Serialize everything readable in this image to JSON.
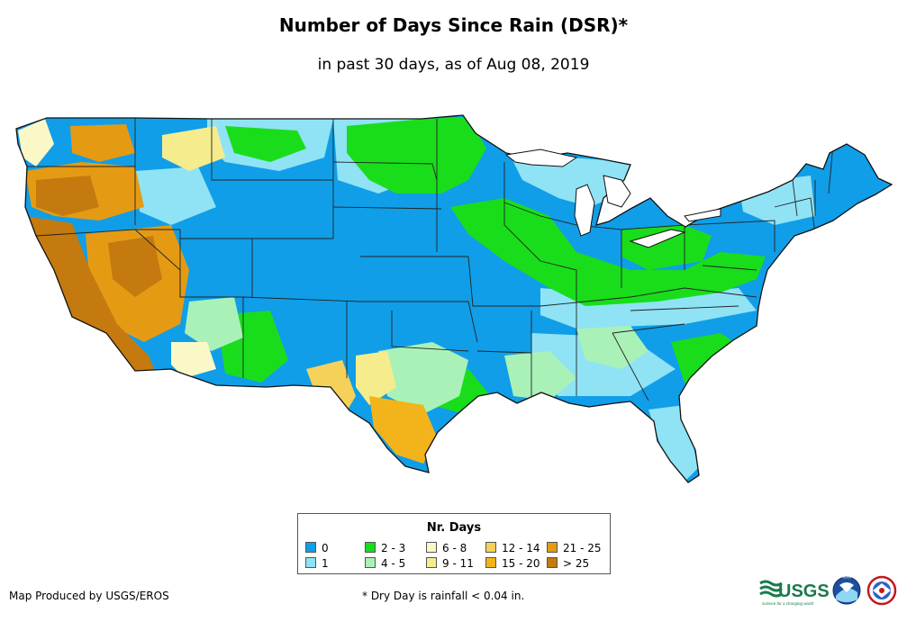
{
  "title": "Number of Days Since Rain (DSR)*",
  "subtitle": "in past 30 days, as of Aug 08, 2019",
  "legend": {
    "title": "Nr. Days",
    "items": [
      {
        "label": "0",
        "color": "#109ee8"
      },
      {
        "label": "1",
        "color": "#8fe3f5"
      },
      {
        "label": "2 - 3",
        "color": "#19dd1b"
      },
      {
        "label": "4 - 5",
        "color": "#aaf1b8"
      },
      {
        "label": "6 - 8",
        "color": "#fbf8c7"
      },
      {
        "label": "9 - 11",
        "color": "#f5ec8d"
      },
      {
        "label": "12 - 14",
        "color": "#f5d15a"
      },
      {
        "label": "15 - 20",
        "color": "#f2b41a"
      },
      {
        "label": "21 - 25",
        "color": "#e59a14"
      },
      {
        "label": "> 25",
        "color": "#c47a0e"
      }
    ]
  },
  "credit": "Map Produced by USGS/EROS",
  "footnote": "* Dry Day is rainfall < 0.04 in.",
  "logos": {
    "usgs_text": "USGS",
    "usgs_tagline": "science for a changing world",
    "noaa_text": "NOAA"
  }
}
